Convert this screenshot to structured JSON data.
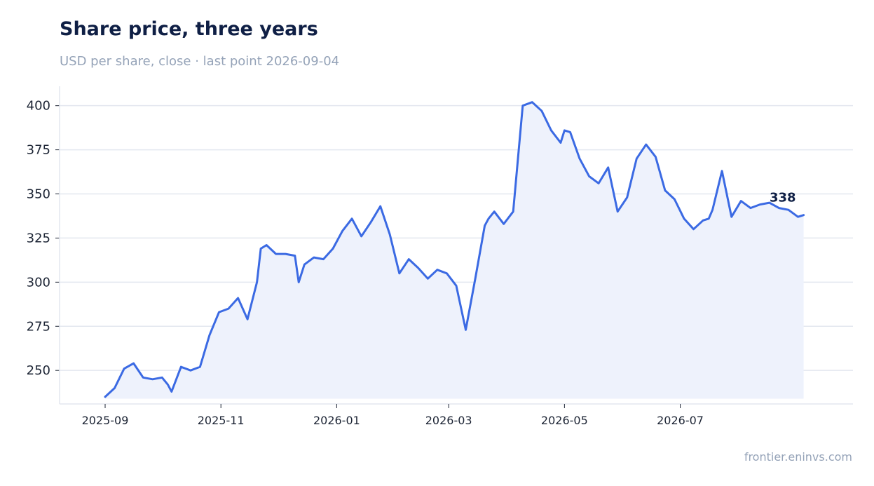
{
  "chart_data": {
    "type": "area",
    "title": "Share price, three years",
    "subtitle": "USD per share, close · last point 2026-09-04",
    "xlabel": "",
    "ylabel": "",
    "x_range": [
      "2025-08-08",
      "2026-09-30"
    ],
    "ylim": [
      231,
      411
    ],
    "y_ticks": [
      250,
      275,
      300,
      325,
      350,
      375,
      400
    ],
    "x_ticks": [
      "2025-09",
      "2025-11",
      "2026-01",
      "2026-03",
      "2026-05",
      "2026-07"
    ],
    "grid": true,
    "series_color": "#3b6ae3",
    "fill_color": "#eef2fc",
    "end_label": "338",
    "series": [
      {
        "dates": [
          "2025-09-01",
          "2025-09-06",
          "2025-09-11",
          "2025-09-16",
          "2025-09-21",
          "2025-09-26",
          "2025-10-01",
          "2025-10-04",
          "2025-10-06",
          "2025-10-11",
          "2025-10-16",
          "2025-10-21",
          "2025-10-26",
          "2025-10-31",
          "2025-11-05",
          "2025-11-10",
          "2025-11-15",
          "2025-11-20",
          "2025-11-22",
          "2025-11-25",
          "2025-11-30",
          "2025-12-05",
          "2025-12-10",
          "2025-12-12",
          "2025-12-15",
          "2025-12-20",
          "2025-12-25",
          "2025-12-30",
          "2026-01-04",
          "2026-01-09",
          "2026-01-14",
          "2026-01-19",
          "2026-01-24",
          "2026-01-29",
          "2026-02-03",
          "2026-02-08",
          "2026-02-13",
          "2026-02-18",
          "2026-02-23",
          "2026-02-28",
          "2026-03-05",
          "2026-03-10",
          "2026-03-15",
          "2026-03-20",
          "2026-03-22",
          "2026-03-25",
          "2026-03-30",
          "2026-04-04",
          "2026-04-09",
          "2026-04-14",
          "2026-04-19",
          "2026-04-24",
          "2026-04-29",
          "2026-05-01",
          "2026-05-04",
          "2026-05-09",
          "2026-05-14",
          "2026-05-19",
          "2026-05-24",
          "2026-05-29",
          "2026-06-03",
          "2026-06-08",
          "2026-06-13",
          "2026-06-18",
          "2026-06-23",
          "2026-06-28",
          "2026-07-03",
          "2026-07-08",
          "2026-07-13",
          "2026-07-16",
          "2026-07-18",
          "2026-07-23",
          "2026-07-28",
          "2026-08-02",
          "2026-08-07",
          "2026-08-12",
          "2026-08-17",
          "2026-08-22",
          "2026-08-27",
          "2026-09-01",
          "2026-09-04"
        ],
        "values": [
          235,
          240,
          251,
          254,
          246,
          245,
          246,
          242,
          238,
          252,
          250,
          252,
          270,
          283,
          285,
          291,
          279,
          300,
          319,
          321,
          316,
          316,
          315,
          300,
          310,
          314,
          313,
          319,
          329,
          336,
          326,
          334,
          343,
          327,
          305,
          313,
          308,
          302,
          307,
          305,
          298,
          273,
          302,
          332,
          336,
          340,
          333,
          340,
          400,
          402,
          397,
          386,
          379,
          386,
          385,
          370,
          360,
          356,
          365,
          340,
          348,
          370,
          378,
          371,
          352,
          347,
          336,
          330,
          335,
          336,
          341,
          363,
          337,
          346,
          342,
          344,
          345,
          342,
          341,
          337,
          338
        ]
      }
    ]
  },
  "footer": "frontier.eninvs.com"
}
